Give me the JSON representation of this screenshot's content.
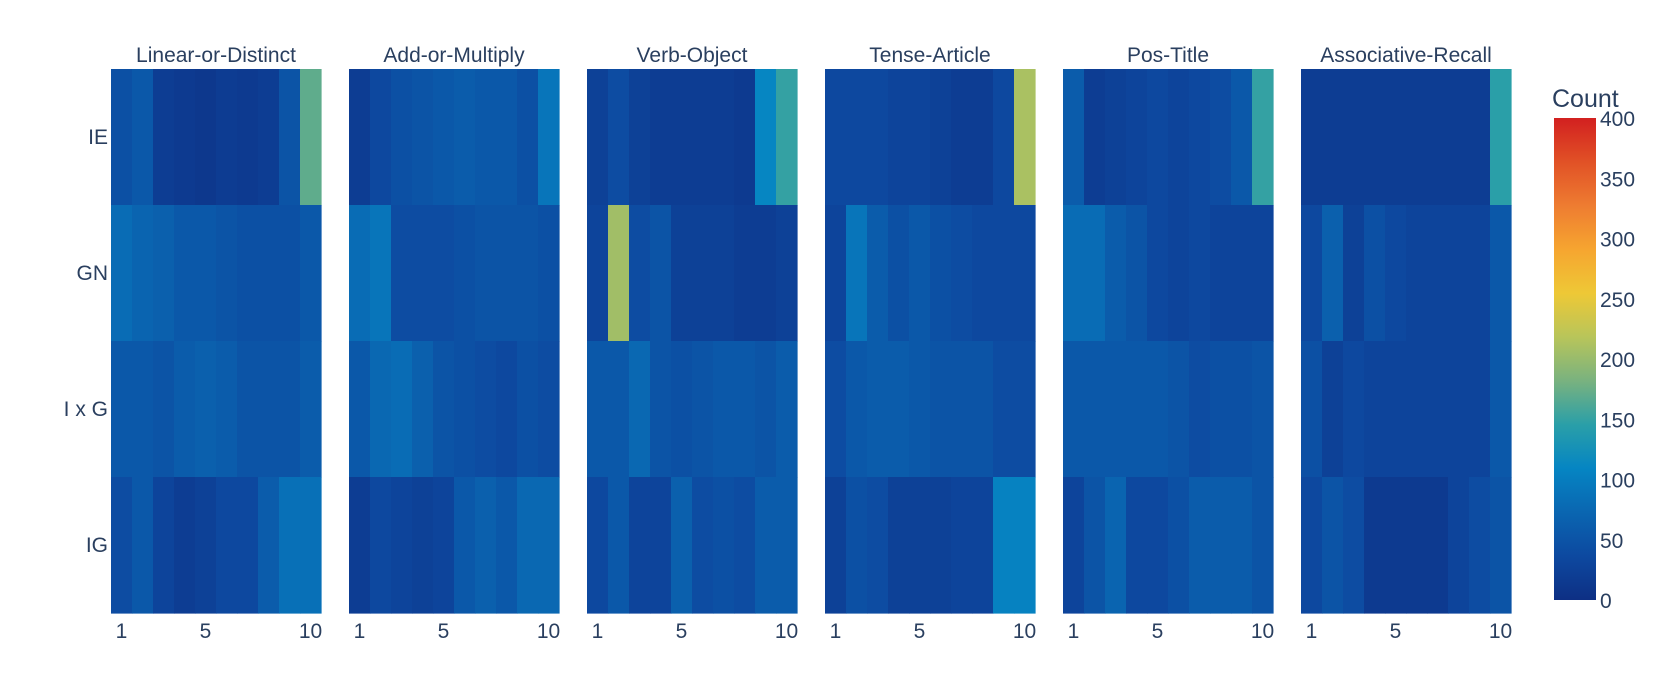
{
  "chart_data": {
    "type": "heatmap",
    "colorbar": {
      "title": "Count",
      "min": 0,
      "max": 400,
      "ticks": [
        "0",
        "50",
        "100",
        "150",
        "200",
        "250",
        "300",
        "350",
        "400"
      ],
      "colorscale": [
        "#0d2f84",
        "#0d49a0",
        "#0a66b1",
        "#0585c3",
        "#2a9fa8",
        "#79b27f",
        "#b8c55a",
        "#eec836",
        "#f6a530",
        "#ee7c31",
        "#e15126",
        "#d22020"
      ]
    },
    "rows": [
      "IE",
      "GN",
      "I x G",
      "IG"
    ],
    "x": [
      1,
      2,
      3,
      4,
      5,
      6,
      7,
      8,
      9,
      10
    ],
    "x_ticks": [
      "1",
      "5",
      "10"
    ],
    "panels": [
      {
        "title": "Linear-or-Distinct",
        "z": [
          [
            45,
            55,
            20,
            15,
            12,
            18,
            15,
            20,
            50,
            170
          ],
          [
            80,
            70,
            65,
            55,
            55,
            50,
            45,
            45,
            45,
            55
          ],
          [
            55,
            55,
            50,
            60,
            65,
            60,
            50,
            50,
            50,
            60
          ],
          [
            40,
            55,
            30,
            20,
            25,
            35,
            35,
            60,
            85,
            85
          ]
        ]
      },
      {
        "title": "Add-or-Multiply",
        "z": [
          [
            20,
            35,
            45,
            50,
            55,
            60,
            55,
            55,
            45,
            90
          ],
          [
            80,
            90,
            40,
            40,
            40,
            45,
            50,
            50,
            50,
            45
          ],
          [
            55,
            75,
            80,
            65,
            50,
            45,
            40,
            35,
            45,
            40
          ],
          [
            20,
            35,
            30,
            25,
            30,
            55,
            65,
            55,
            75,
            75
          ]
        ]
      },
      {
        "title": "Verb-Object",
        "z": [
          [
            25,
            40,
            25,
            20,
            20,
            20,
            20,
            15,
            110,
            150
          ],
          [
            30,
            205,
            40,
            50,
            25,
            25,
            25,
            20,
            20,
            25
          ],
          [
            55,
            55,
            75,
            50,
            45,
            50,
            55,
            55,
            50,
            60
          ],
          [
            35,
            55,
            30,
            30,
            65,
            40,
            45,
            40,
            60,
            60
          ]
        ]
      },
      {
        "title": "Tense-Article",
        "z": [
          [
            35,
            35,
            35,
            30,
            30,
            25,
            20,
            20,
            35,
            210
          ],
          [
            30,
            90,
            60,
            45,
            55,
            45,
            40,
            35,
            35,
            35
          ],
          [
            40,
            55,
            60,
            60,
            55,
            50,
            50,
            50,
            40,
            40
          ],
          [
            25,
            45,
            40,
            25,
            25,
            25,
            30,
            30,
            105,
            105
          ]
        ]
      },
      {
        "title": "Pos-Title",
        "z": [
          [
            60,
            20,
            25,
            30,
            35,
            30,
            35,
            40,
            55,
            150
          ],
          [
            80,
            80,
            60,
            50,
            35,
            30,
            35,
            30,
            30,
            30
          ],
          [
            55,
            55,
            55,
            55,
            55,
            50,
            40,
            45,
            45,
            50
          ],
          [
            30,
            50,
            70,
            35,
            35,
            45,
            60,
            60,
            60,
            50
          ]
        ]
      },
      {
        "title": "Associative-Recall",
        "z": [
          [
            20,
            20,
            20,
            20,
            20,
            20,
            20,
            20,
            20,
            145
          ],
          [
            35,
            65,
            25,
            45,
            35,
            30,
            30,
            30,
            30,
            55
          ],
          [
            45,
            25,
            35,
            30,
            30,
            30,
            30,
            30,
            30,
            55
          ],
          [
            35,
            50,
            40,
            15,
            15,
            15,
            15,
            30,
            40,
            50
          ]
        ]
      }
    ]
  }
}
